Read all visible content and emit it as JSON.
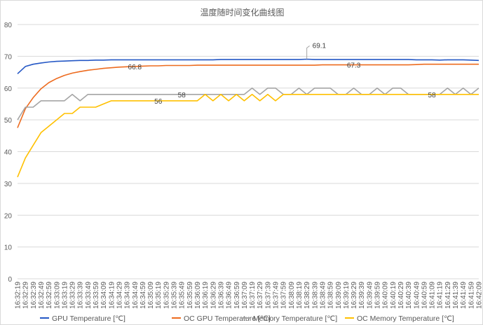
{
  "chart_data": {
    "type": "line",
    "title": "温度随时间变化曲线图",
    "xlabel": "",
    "ylabel": "",
    "ylim": [
      0,
      80
    ],
    "yticks": [
      0,
      10,
      20,
      30,
      40,
      50,
      60,
      70,
      80
    ],
    "grid": true,
    "legend_position": "bottom",
    "categories": [
      "16:32:19",
      "16:32:29",
      "16:32:39",
      "16:32:49",
      "16:32:59",
      "16:33:09",
      "16:33:19",
      "16:33:29",
      "16:33:39",
      "16:33:49",
      "16:33:59",
      "16:34:09",
      "16:34:19",
      "16:34:29",
      "16:34:39",
      "16:34:49",
      "16:34:59",
      "16:35:09",
      "16:35:19",
      "16:35:29",
      "16:35:39",
      "16:35:49",
      "16:35:59",
      "16:36:09",
      "16:36:19",
      "16:36:29",
      "16:36:39",
      "16:36:49",
      "16:36:59",
      "16:37:09",
      "16:37:19",
      "16:37:29",
      "16:37:39",
      "16:37:49",
      "16:37:59",
      "16:38:09",
      "16:38:19",
      "16:38:29",
      "16:38:39",
      "16:38:49",
      "16:38:59",
      "16:39:09",
      "16:39:19",
      "16:39:29",
      "16:39:39",
      "16:39:49",
      "16:39:59",
      "16:40:09",
      "16:40:19",
      "16:40:29",
      "16:40:39",
      "16:40:49",
      "16:40:59",
      "16:41:09",
      "16:41:19",
      "16:41:29",
      "16:41:39",
      "16:41:49",
      "16:41:59",
      "16:42:09"
    ],
    "series": [
      {
        "name": "GPU Temperature [℃]",
        "color": "#2457c5",
        "values": [
          64.5,
          66.8,
          67.5,
          67.9,
          68.2,
          68.4,
          68.5,
          68.6,
          68.7,
          68.7,
          68.8,
          68.8,
          68.9,
          68.9,
          68.9,
          68.9,
          68.9,
          68.9,
          68.9,
          68.9,
          68.9,
          68.9,
          68.9,
          68.9,
          68.9,
          68.9,
          69.0,
          69.0,
          69.0,
          69.0,
          69.0,
          69.0,
          69.0,
          69.0,
          69.0,
          69.0,
          69.0,
          69.1,
          69.0,
          69.0,
          69.0,
          69.0,
          69.0,
          69.0,
          69.0,
          69.0,
          69.0,
          69.0,
          69.0,
          69.0,
          69.0,
          68.9,
          68.9,
          68.9,
          68.8,
          68.9,
          68.9,
          68.9,
          68.8,
          68.7
        ]
      },
      {
        "name": "OC GPU Temperature [℃]",
        "color": "#ed6b1f",
        "values": [
          47.5,
          53.5,
          57,
          59.8,
          61.7,
          63,
          64,
          64.7,
          65.2,
          65.6,
          65.9,
          66.2,
          66.4,
          66.6,
          66.7,
          66.8,
          66.9,
          67.0,
          67.0,
          67.1,
          67.1,
          67.1,
          67.1,
          67.2,
          67.2,
          67.2,
          67.2,
          67.2,
          67.2,
          67.2,
          67.2,
          67.2,
          67.2,
          67.2,
          67.2,
          67.2,
          67.2,
          67.2,
          67.2,
          67.3,
          67.3,
          67.3,
          67.3,
          67.3,
          67.3,
          67.3,
          67.3,
          67.3,
          67.3,
          67.3,
          67.3,
          67.4,
          67.5,
          67.5,
          67.5,
          67.5,
          67.5,
          67.5,
          67.5,
          67.5
        ]
      },
      {
        "name": "Memory Temperature [℃]",
        "color": "#a5a5a5",
        "values": [
          50,
          54,
          54,
          56,
          56,
          56,
          56,
          58,
          56,
          58,
          58,
          58,
          58,
          58,
          58,
          58,
          58,
          58,
          58,
          58,
          58,
          58,
          58,
          58,
          58,
          58,
          58,
          58,
          58,
          58,
          60,
          58,
          60,
          60,
          58,
          58,
          60,
          58,
          60,
          60,
          60,
          58,
          58,
          60,
          58,
          58,
          60,
          58,
          60,
          60,
          58,
          58,
          58,
          58,
          58,
          60,
          58,
          60,
          58,
          60
        ]
      },
      {
        "name": "OC Memory Temperature [℃]",
        "color": "#ffc000",
        "values": [
          32,
          38,
          42,
          46,
          48,
          50,
          52,
          52,
          54,
          54,
          54,
          55,
          56,
          56,
          56,
          56,
          56,
          56,
          56,
          56,
          56,
          56,
          56,
          56,
          58,
          56,
          58,
          56,
          58,
          56,
          58,
          56,
          58,
          56,
          58,
          58,
          58,
          58,
          58,
          58,
          58,
          58,
          58,
          58,
          58,
          58,
          58,
          58,
          58,
          58,
          58,
          58,
          58,
          58,
          58,
          58,
          58,
          58,
          58,
          58
        ]
      }
    ],
    "data_labels": [
      {
        "series": 0,
        "index": 37,
        "text": "69.1"
      },
      {
        "series": 1,
        "index": 15,
        "text": "66.8"
      },
      {
        "series": 1,
        "index": 43,
        "text": "67.3"
      },
      {
        "series": 2,
        "index": 21,
        "text": "58"
      },
      {
        "series": 3,
        "index": 18,
        "text": "56"
      },
      {
        "series": 3,
        "index": 53,
        "text": "58"
      }
    ]
  }
}
